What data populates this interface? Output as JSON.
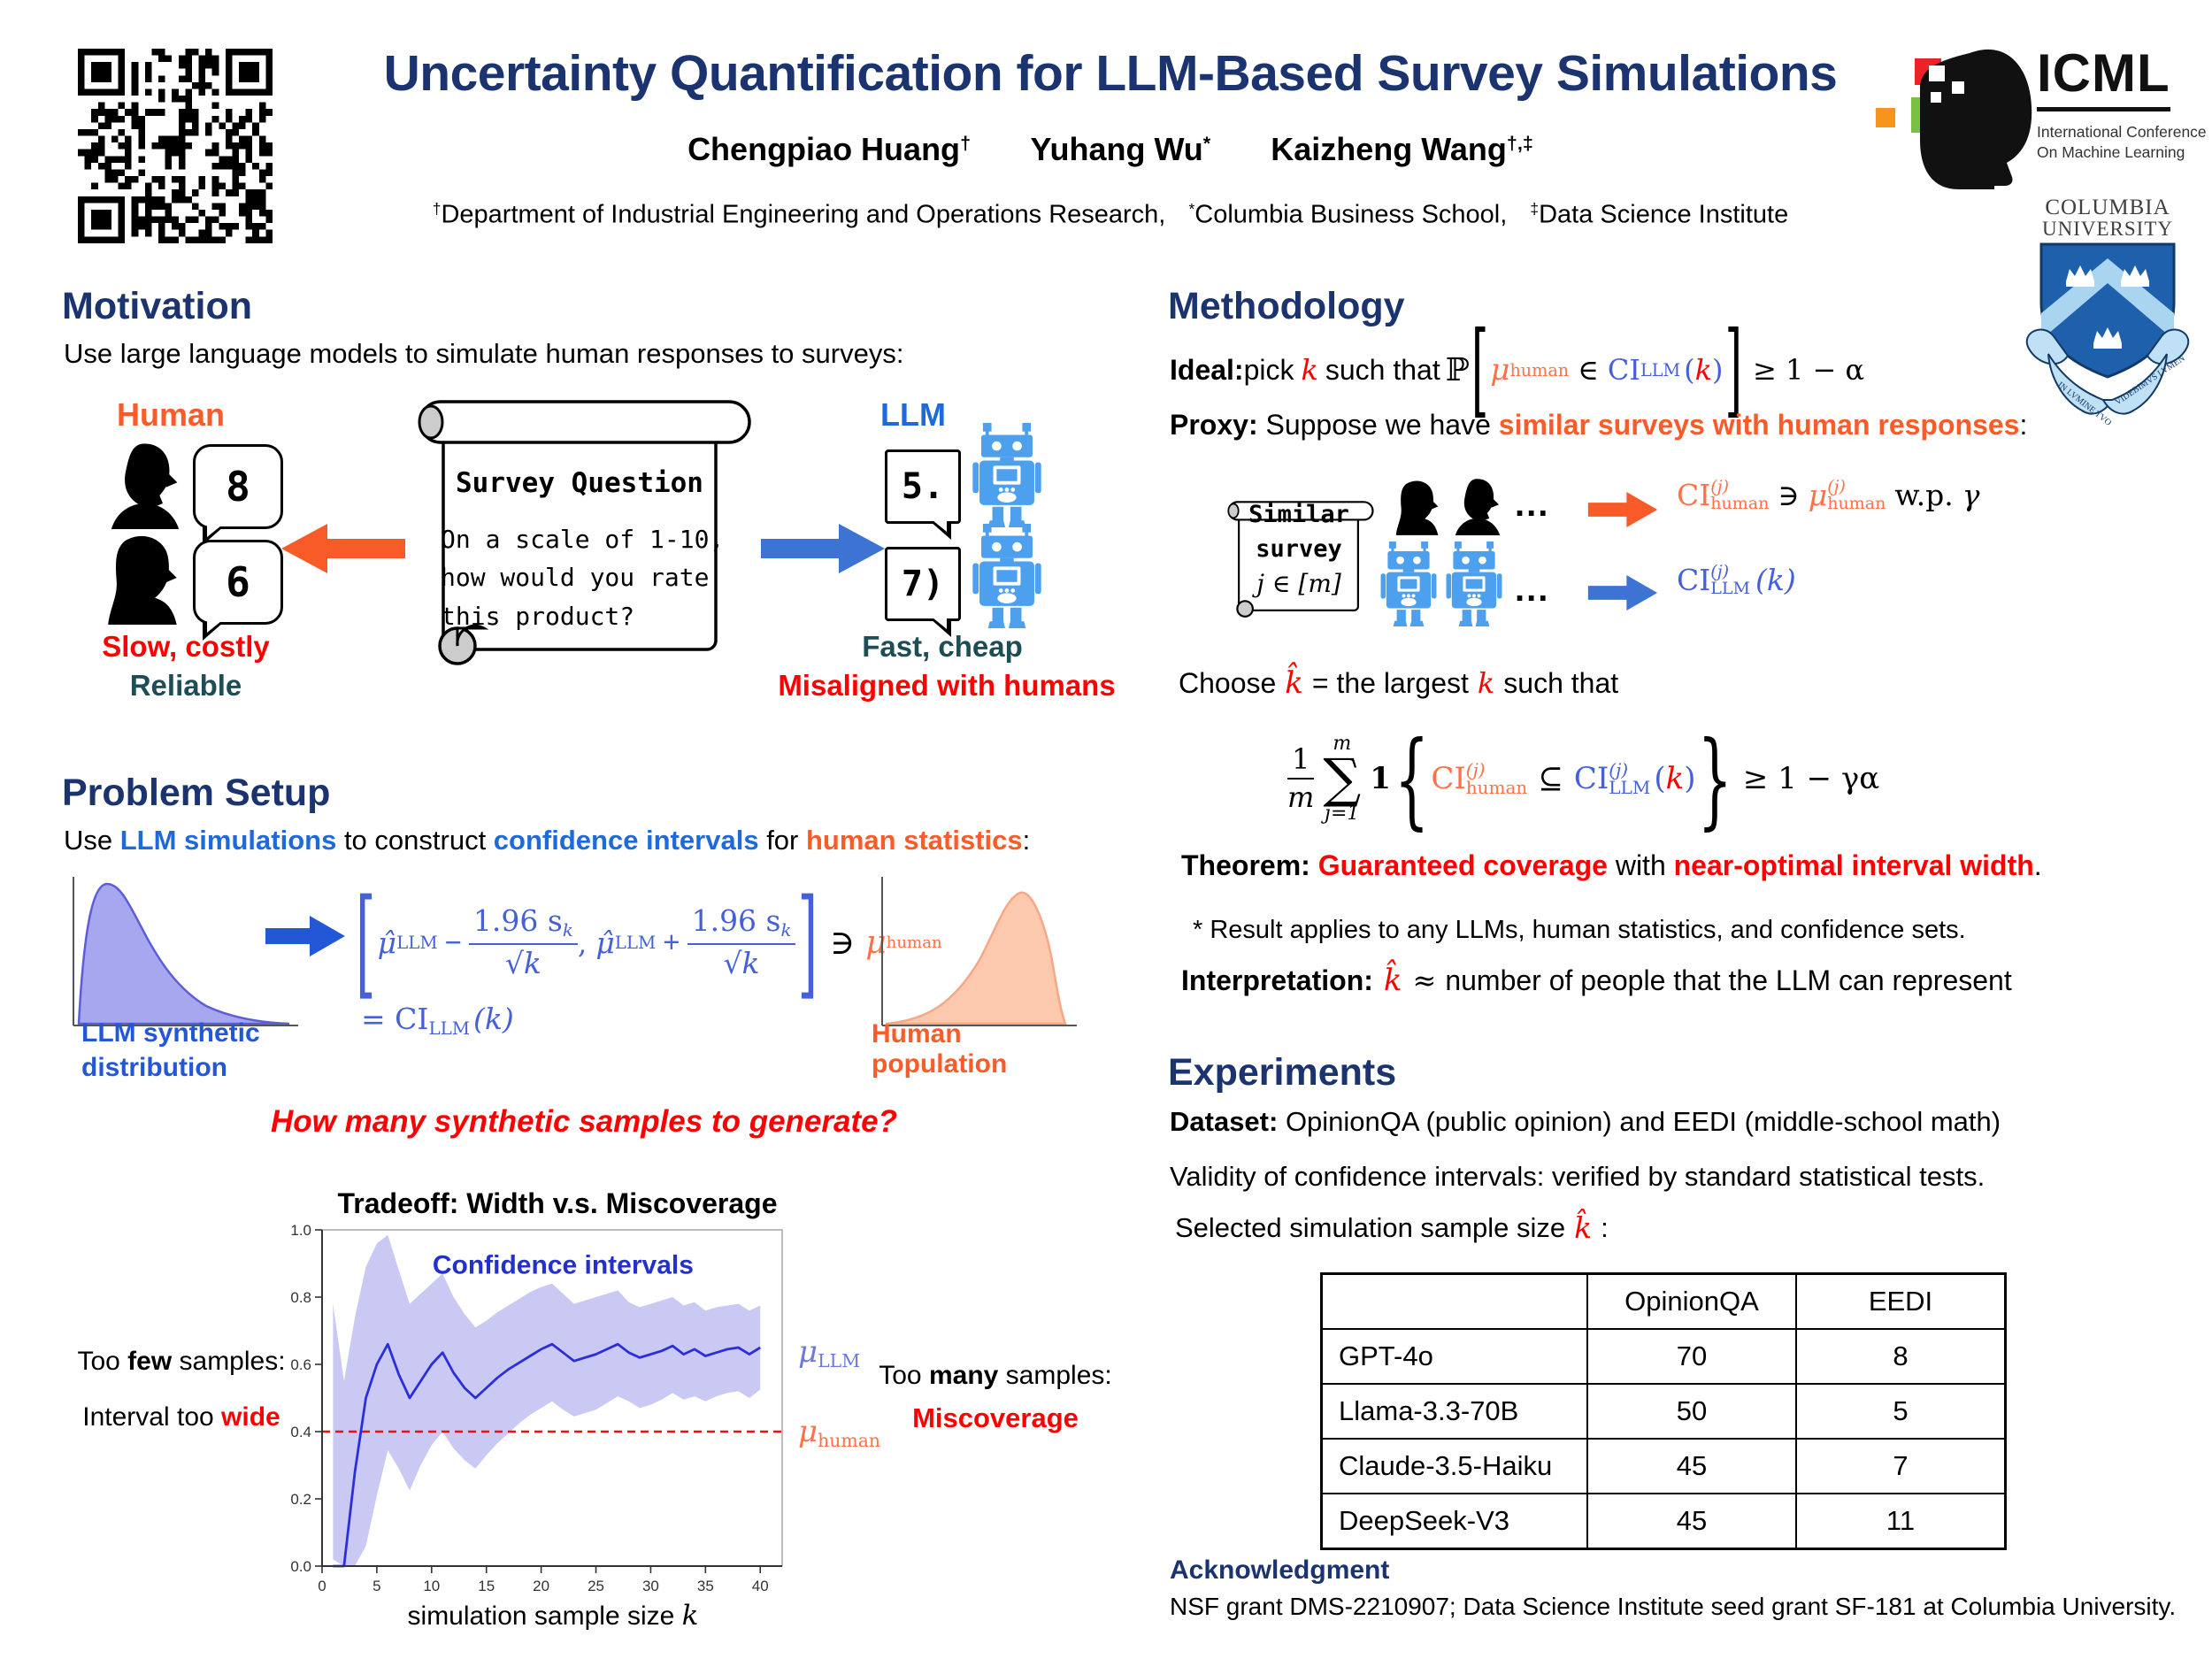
{
  "colors": {
    "navy": "#1b3470",
    "orange": "#f85c28",
    "blue": "#1e6ada",
    "mathblue": "#4560d8",
    "mathorange": "#ff7148",
    "red": "#ff0000",
    "teal": "#1d4d55",
    "robot_blue": "#4da0ee",
    "band": "#c9c9f3",
    "line": "#2b2fd9",
    "dashed_red": "#ee1111"
  },
  "header": {
    "title": "Uncertainty Quantification for LLM-Based Survey Simulations",
    "authors": [
      {
        "name": "Chengpiao Huang",
        "sup": "†"
      },
      {
        "name": "Yuhang Wu",
        "sup": "*"
      },
      {
        "name": "Kaizheng Wang",
        "sup": "†,‡"
      }
    ],
    "affiliations": [
      {
        "sup": "†",
        "text": "Department of Industrial Engineering and Operations Research,"
      },
      {
        "sup": "*",
        "text": "Columbia Business School,"
      },
      {
        "sup": "‡",
        "text": "Data Science Institute"
      }
    ],
    "icml": {
      "acronym": "ICML",
      "line1": "International Conference",
      "line2": "On Machine Learning"
    },
    "columbia": {
      "line1": "COLUMBIA",
      "line2": "UNIVERSITY",
      "motto_left": "IN LVMINE TVO",
      "motto_right": "VIDEBIMVS LVMEN"
    }
  },
  "motivation": {
    "heading": "Motivation",
    "intro": "Use large language models to simulate human responses to surveys:",
    "human_label": "Human",
    "llm_label": "LLM",
    "bubble_human1": "8",
    "bubble_human2": "6",
    "bubble_llm1": "5.",
    "bubble_llm2": "7)",
    "scroll_title": "Survey Question",
    "scroll_line1": "On a scale of 1-10,",
    "scroll_line2": "how would you rate",
    "scroll_line3": "this product?",
    "human_note1": "Slow, costly",
    "human_note2": "Reliable",
    "llm_note1": "Fast, cheap",
    "llm_note2": "Misaligned with humans"
  },
  "problem": {
    "heading": "Problem Setup",
    "intro_pre": "Use ",
    "intro_b1": "LLM simulations",
    "intro_mid1": " to construct ",
    "intro_b2": "confidence intervals",
    "intro_mid2": " for ",
    "intro_b3": "human statistics",
    "intro_colon": ":",
    "dist_left_label1": "LLM synthetic",
    "dist_left_label2": "distribution",
    "dist_right_label": "Human population",
    "formula": {
      "open": "[",
      "mu_hat": "μ̂",
      "mu_sub": "LLM",
      "minus": "−",
      "num": "1.96 s",
      "num_sub": "k",
      "sqrt": "√",
      "den": "k",
      "comma": ",",
      "plus": "+",
      "close": "]",
      "contains": "∋",
      "mu_human": "μ",
      "mu_human_sub": "human",
      "ci_eq": "= CI",
      "ci_sub": "LLM",
      "ci_arg": "(k)"
    },
    "question": "How many synthetic samples to generate?"
  },
  "chart_data": {
    "type": "line",
    "title": "Tradeoff:  Width v.s. Miscoverage",
    "xlabel": "simulation sample size",
    "xlabel_var": "k",
    "legend_inplot": "Confidence intervals",
    "x": [
      1,
      2,
      3,
      4,
      5,
      6,
      7,
      8,
      9,
      10,
      11,
      12,
      13,
      14,
      15,
      16,
      17,
      18,
      19,
      20,
      21,
      22,
      23,
      24,
      25,
      26,
      27,
      28,
      29,
      30,
      31,
      32,
      33,
      34,
      35,
      36,
      37,
      38,
      39,
      40
    ],
    "mean": [
      0.0,
      0.0,
      0.28,
      0.5,
      0.6,
      0.66,
      0.57,
      0.5,
      0.55,
      0.6,
      0.635,
      0.575,
      0.53,
      0.5,
      0.53,
      0.56,
      0.585,
      0.605,
      0.625,
      0.645,
      0.66,
      0.635,
      0.61,
      0.62,
      0.63,
      0.645,
      0.66,
      0.635,
      0.62,
      0.63,
      0.64,
      0.655,
      0.63,
      0.645,
      0.625,
      0.635,
      0.645,
      0.65,
      0.63,
      0.65
    ],
    "upper": [
      0.78,
      0.55,
      0.74,
      0.89,
      0.96,
      0.985,
      0.88,
      0.78,
      0.81,
      0.84,
      0.87,
      0.8,
      0.75,
      0.71,
      0.73,
      0.755,
      0.775,
      0.795,
      0.815,
      0.83,
      0.84,
      0.81,
      0.78,
      0.79,
      0.8,
      0.81,
      0.82,
      0.785,
      0.77,
      0.78,
      0.79,
      0.8,
      0.775,
      0.785,
      0.76,
      0.77,
      0.775,
      0.78,
      0.76,
      0.775
    ],
    "lower": [
      0.02,
      0.0,
      0.0,
      0.06,
      0.21,
      0.345,
      0.29,
      0.225,
      0.3,
      0.36,
      0.4,
      0.35,
      0.315,
      0.29,
      0.33,
      0.365,
      0.395,
      0.425,
      0.45,
      0.47,
      0.49,
      0.465,
      0.445,
      0.455,
      0.465,
      0.485,
      0.505,
      0.49,
      0.47,
      0.48,
      0.495,
      0.515,
      0.495,
      0.505,
      0.49,
      0.505,
      0.515,
      0.52,
      0.5,
      0.525
    ],
    "mu_human_value": 0.4,
    "xticks": [
      0,
      5,
      10,
      15,
      20,
      25,
      30,
      35,
      40
    ],
    "yticks": [
      0.0,
      0.2,
      0.4,
      0.6,
      0.8,
      1.0
    ],
    "xlim": [
      0,
      42
    ],
    "ylim": [
      0,
      1
    ],
    "grid": false,
    "legend_position": "in-plot-top",
    "mu_llm_label": {
      "mu": "μ",
      "sub": "LLM"
    },
    "mu_human_label": {
      "mu": "μ",
      "sub": "human"
    },
    "annotations": {
      "left1_pre": "Too ",
      "left1_bold": "few",
      "left1_post": " samples:",
      "left2_pre": "Interval too ",
      "left2_red": "wide",
      "right1_pre": "Too ",
      "right1_bold": "many",
      "right1_post": " samples:",
      "right2": "Miscoverage"
    }
  },
  "methodology": {
    "heading": "Methodology",
    "ideal_label": "Ideal:",
    "ideal_pick": " pick ",
    "k": "k",
    "ideal_mid": " such that ",
    "P": "ℙ",
    "lb": "[",
    "mu": "μ",
    "mu_sub": "human",
    "in": "∈",
    "ci": "CI",
    "ci_sub": "LLM",
    "lp": "(",
    "karg": "k",
    "rp": ")",
    "rb": "]",
    "geq": "≥ 1 − α",
    "proxy_label": "Proxy:",
    "proxy_pre": " Suppose we have ",
    "proxy_hl": "similar surveys with human responses",
    "proxy_colon": ":",
    "scroll_line1": "Similar",
    "scroll_line2": "survey",
    "scroll_line3": "j ∈ [m]",
    "dots1": "...",
    "dots2": "...",
    "row1": {
      "ci": "CI",
      "sup": "(j)",
      "sub": "human",
      "ni": "∋",
      "mu": "μ",
      "musup": "(j)",
      "musub": "human",
      "wp": "w.p.",
      "gamma": "γ"
    },
    "row2": {
      "ci": "CI",
      "sup": "(j)",
      "sub": "LLM",
      "arg": "(k)"
    },
    "choose_pre": "Choose ",
    "khat": "k̂",
    "choose_mid": "= the largest ",
    "choose_k": "k",
    "choose_post": "such that",
    "sum": {
      "num": "1",
      "den": "m",
      "top": "m",
      "sigma": "∑",
      "bottom": "j=1",
      "ind": "1",
      "lbrace": "{",
      "ci1": "CI",
      "ci1sup": "(j)",
      "ci1sub": "human",
      "subseteq": "⊆",
      "ci2": "CI",
      "ci2sup": "(j)",
      "ci2sub": "LLM",
      "lp": "(",
      "k": "k",
      "rp": ")",
      "rbrace": "}",
      "geq": "≥ 1 − γα"
    },
    "theorem_label": "Theorem:",
    "theorem_red1": "Guaranteed coverage",
    "theorem_mid": " with ",
    "theorem_red2": "near-optimal interval width",
    "theorem_period": ".",
    "footnote": "* Result applies to any LLMs, human statistics, and confidence sets.",
    "interp_label": "Interpretation:",
    "interp_khat": "k̂",
    "interp_approx": "≈",
    "interp_text": "number of people that the LLM can represent"
  },
  "experiments": {
    "heading": "Experiments",
    "dataset_label": "Dataset:",
    "dataset_text": " OpinionQA (public opinion) and EEDI (middle-school math)",
    "validity": "Validity of confidence intervals: verified by standard statistical tests.",
    "selected_pre": "Selected simulation sample size ",
    "khat": "k̂",
    "selected_post": ":",
    "table": {
      "headers": [
        "",
        "OpinionQA",
        "EEDI"
      ],
      "rows": [
        {
          "model": "GPT-4o",
          "opinionqa": "70",
          "eedi": "8"
        },
        {
          "model": "Llama-3.3-70B",
          "opinionqa": "50",
          "eedi": "5"
        },
        {
          "model": "Claude-3.5-Haiku",
          "opinionqa": "45",
          "eedi": "7"
        },
        {
          "model": "DeepSeek-V3",
          "opinionqa": "45",
          "eedi": "11"
        }
      ]
    }
  },
  "acknowledgment": {
    "heading": "Acknowledgment",
    "text": "NSF grant DMS-2210907; Data Science Institute seed grant SF-181 at Columbia University."
  }
}
